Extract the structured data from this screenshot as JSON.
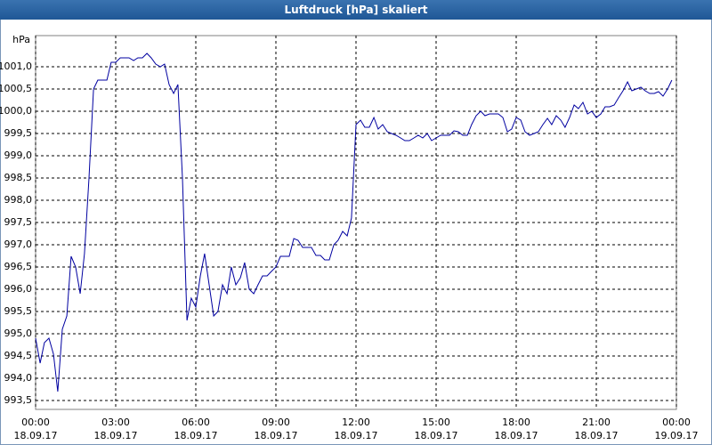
{
  "chart_data": {
    "type": "line",
    "title": "Luftdruck [hPa] skaliert",
    "y_unit": "hPa",
    "color": "#0000a0",
    "grid": true,
    "x": [
      0,
      0.17,
      0.33,
      0.5,
      0.67,
      0.83,
      1,
      1.17,
      1.33,
      1.5,
      1.67,
      1.83,
      2,
      2.17,
      2.33,
      2.5,
      2.67,
      2.83,
      3,
      3.17,
      3.33,
      3.5,
      3.67,
      3.83,
      4,
      4.17,
      4.33,
      4.5,
      4.67,
      4.83,
      5,
      5.17,
      5.33,
      5.5,
      5.67,
      5.83,
      6,
      6.17,
      6.33,
      6.5,
      6.67,
      6.83,
      7,
      7.17,
      7.33,
      7.5,
      7.67,
      7.83,
      8,
      8.17,
      8.33,
      8.5,
      8.67,
      8.83,
      9,
      9.17,
      9.33,
      9.5,
      9.67,
      9.83,
      10,
      10.17,
      10.33,
      10.5,
      10.67,
      10.83,
      11,
      11.17,
      11.33,
      11.5,
      11.67,
      11.83,
      12,
      12.17,
      12.33,
      12.5,
      12.67,
      12.83,
      13,
      13.17,
      13.33,
      13.5,
      13.67,
      13.83,
      14,
      14.17,
      14.33,
      14.5,
      14.67,
      14.83,
      15,
      15.17,
      15.33,
      15.5,
      15.67,
      15.83,
      16,
      16.17,
      16.33,
      16.5,
      16.67,
      16.83,
      17,
      17.17,
      17.33,
      17.5,
      17.67,
      17.83,
      18,
      18.17,
      18.33,
      18.5,
      18.67,
      18.83,
      19,
      19.17,
      19.33,
      19.5,
      19.67,
      19.83,
      20,
      20.17,
      20.33,
      20.5,
      20.67,
      20.83,
      21,
      21.17,
      21.33,
      21.5,
      21.67,
      21.83,
      22,
      22.17,
      22.33,
      22.5,
      22.67,
      22.83,
      23,
      23.17,
      23.33,
      23.5,
      23.67,
      23.83
    ],
    "values": [
      994.9,
      994.34,
      994.8,
      994.9,
      994.54,
      993.7,
      995.1,
      995.4,
      996.74,
      996.5,
      995.9,
      996.8,
      998.5,
      1000.5,
      1000.7,
      1000.7,
      1000.7,
      1001.1,
      1001.1,
      1001.2,
      1001.2,
      1001.2,
      1001.14,
      1001.2,
      1001.2,
      1001.3,
      1001.2,
      1001.06,
      1001.0,
      1001.06,
      1000.6,
      1000.4,
      1000.6,
      998.5,
      995.3,
      995.8,
      995.6,
      996.3,
      996.8,
      996.1,
      995.4,
      995.5,
      996.1,
      995.9,
      996.5,
      996.1,
      996.26,
      996.6,
      996.0,
      995.9,
      996.1,
      996.3,
      996.3,
      996.4,
      996.5,
      996.74,
      996.74,
      996.74,
      997.14,
      997.1,
      996.94,
      996.94,
      996.94,
      996.76,
      996.76,
      996.66,
      996.66,
      997.0,
      997.1,
      997.3,
      997.2,
      997.6,
      999.7,
      999.8,
      999.64,
      999.64,
      999.86,
      999.6,
      999.7,
      999.54,
      999.5,
      999.46,
      999.4,
      999.34,
      999.34,
      999.4,
      999.46,
      999.4,
      999.5,
      999.34,
      999.4,
      999.46,
      999.46,
      999.46,
      999.56,
      999.54,
      999.46,
      999.46,
      999.7,
      999.9,
      1000.0,
      999.9,
      999.94,
      999.94,
      999.94,
      999.86,
      999.54,
      999.6,
      999.86,
      999.8,
      999.54,
      999.46,
      999.5,
      999.54,
      999.7,
      999.84,
      999.7,
      999.9,
      999.8,
      999.64,
      999.86,
      1000.14,
      1000.06,
      1000.2,
      999.94,
      1000.0,
      999.86,
      999.94,
      1000.1,
      1000.1,
      1000.14,
      1000.3,
      1000.46,
      1000.66,
      1000.46,
      1000.5,
      1000.54,
      1000.46,
      1000.4,
      1000.4,
      1000.44,
      1000.34,
      1000.5,
      1000.7
    ],
    "xlim": [
      0,
      24
    ],
    "xticks": [
      {
        "value": 0,
        "label": "00:00"
      },
      {
        "value": 3,
        "label": "03:00"
      },
      {
        "value": 6,
        "label": "06:00"
      },
      {
        "value": 9,
        "label": "09:00"
      },
      {
        "value": 12,
        "label": "12:00"
      },
      {
        "value": 15,
        "label": "15:00"
      },
      {
        "value": 18,
        "label": "18:00"
      },
      {
        "value": 21,
        "label": "21:00"
      },
      {
        "value": 24,
        "label": "00:00"
      }
    ],
    "xtick_dates": [
      "18.09.17",
      "18.09.17",
      "18.09.17",
      "18.09.17",
      "18.09.17",
      "18.09.17",
      "18.09.17",
      "18.09.17",
      "19.09.17"
    ],
    "ylim": [
      993.3,
      1001.7
    ],
    "yticks": [
      {
        "value": 993.5,
        "label": "993,5"
      },
      {
        "value": 994,
        "label": "994,0"
      },
      {
        "value": 994.5,
        "label": "994,5"
      },
      {
        "value": 995,
        "label": "995,0"
      },
      {
        "value": 995.5,
        "label": "995,5"
      },
      {
        "value": 996,
        "label": "996,0"
      },
      {
        "value": 996.5,
        "label": "996,5"
      },
      {
        "value": 997,
        "label": "997,0"
      },
      {
        "value": 997.5,
        "label": "997,5"
      },
      {
        "value": 998,
        "label": "998,0"
      },
      {
        "value": 998.5,
        "label": "998,5"
      },
      {
        "value": 999,
        "label": "999,0"
      },
      {
        "value": 999.5,
        "label": "999,5"
      },
      {
        "value": 1000,
        "label": "1000,0"
      },
      {
        "value": 1000.5,
        "label": "1000,5"
      },
      {
        "value": 1001,
        "label": "1001,0"
      }
    ]
  }
}
